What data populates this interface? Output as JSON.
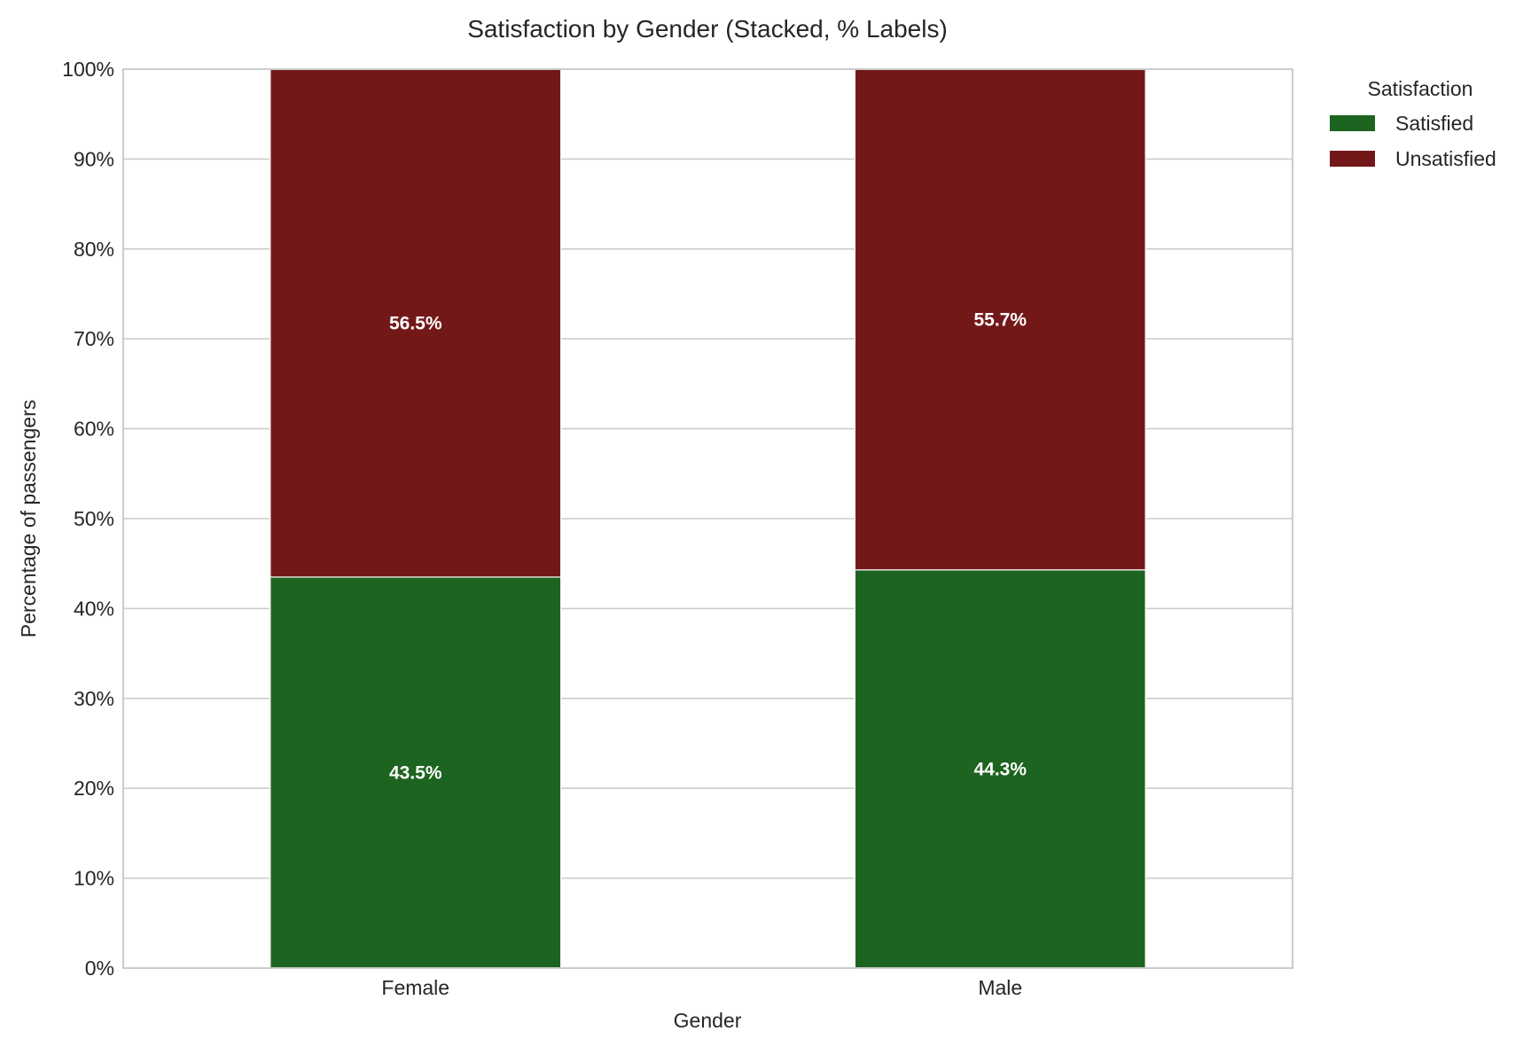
{
  "chart_data": {
    "type": "bar",
    "stacked": true,
    "title": "Satisfaction by Gender (Stacked, % Labels)",
    "xlabel": "Gender",
    "ylabel": "Percentage of passengers",
    "categories": [
      "Female",
      "Male"
    ],
    "series": [
      {
        "name": "Satisfied",
        "values": [
          43.5,
          44.3
        ],
        "labels": [
          "43.5%",
          "44.3%"
        ],
        "color": "#1d6420"
      },
      {
        "name": "Unsatisfied",
        "values": [
          56.5,
          55.7
        ],
        "labels": [
          "56.5%",
          "55.7%"
        ],
        "color": "#731819"
      }
    ],
    "ylim": [
      0,
      100
    ],
    "yticks": [
      0,
      10,
      20,
      30,
      40,
      50,
      60,
      70,
      80,
      90,
      100
    ],
    "ytick_labels": [
      "0%",
      "10%",
      "20%",
      "30%",
      "40%",
      "50%",
      "60%",
      "70%",
      "80%",
      "90%",
      "100%"
    ],
    "grid": "horizontal",
    "legend": {
      "title": "Satisfaction",
      "placement": "outside-top-right"
    },
    "colors": {
      "grid": "#cccccc",
      "spine": "#cccccc",
      "text": "#262626"
    }
  }
}
